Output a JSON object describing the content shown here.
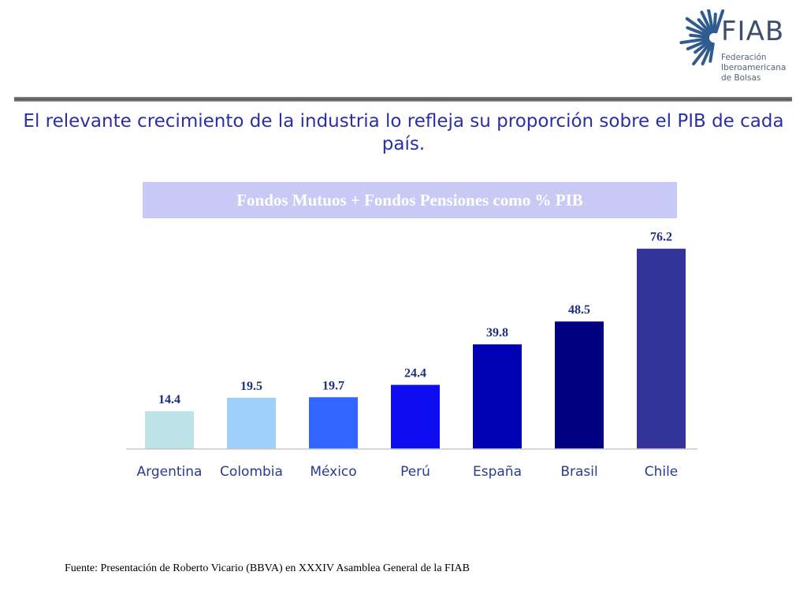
{
  "logo": {
    "name": "FIAB",
    "subtitle_lines": [
      "Federación",
      "Iberoamericana",
      "de Bolsas"
    ]
  },
  "headline": "El relevante crecimiento de la industria lo refleja su proporción sobre el PIB de cada país.",
  "chart_data": {
    "type": "bar",
    "title": "Fondos Mutuos + Fondos Pensiones como % PIB",
    "categories": [
      "Argentina",
      "Colombia",
      "México",
      "Perú",
      "España",
      "Brasil",
      "Chile"
    ],
    "values": [
      14.4,
      19.5,
      19.7,
      24.4,
      39.8,
      48.5,
      76.2
    ],
    "value_labels": [
      "14.4",
      "19.5",
      "19.7",
      "24.4",
      "39.8",
      "48.5",
      "76.2"
    ],
    "bar_colors": [
      "#bde3e6",
      "#9fd0fa",
      "#3366ff",
      "#0d0df0",
      "#0000b3",
      "#000080",
      "#333399"
    ],
    "ylim": [
      0,
      80
    ],
    "grid": false,
    "legend": "none"
  },
  "colors": {
    "headline": "#2b2fa6",
    "title_band": "#c9c9f6",
    "category_labels": "#2b3a8c",
    "value_labels": "#1f2e7a"
  },
  "source": "Fuente: Presentación de Roberto Vicario (BBVA) en XXXIV Asamblea General de la FIAB"
}
